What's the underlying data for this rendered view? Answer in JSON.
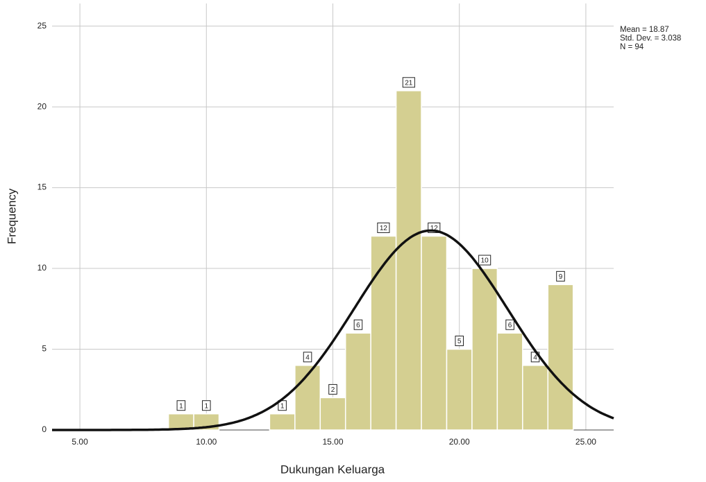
{
  "chart_data": {
    "type": "histogram",
    "x_label": "Dukungan Keluarga",
    "y_label": "Frequency",
    "bins": [
      8.5,
      9.5,
      10.5,
      11.5,
      12.5,
      13.5,
      14.5,
      15.5,
      16.5,
      17.5,
      18.5,
      19.5,
      20.5,
      21.5,
      22.5,
      23.5,
      24.5
    ],
    "values": [
      1,
      1,
      0,
      0,
      1,
      4,
      2,
      6,
      12,
      21,
      12,
      5,
      10,
      6,
      4,
      9
    ],
    "color": "#d4cf91",
    "xlim": [
      3.9,
      26.1
    ],
    "xticks": [
      {
        "value": 5,
        "label": "5.00"
      },
      {
        "value": 10,
        "label": "10.00"
      },
      {
        "value": 15,
        "label": "15.00"
      },
      {
        "value": 20,
        "label": "20.00"
      },
      {
        "value": 25,
        "label": "25.00"
      }
    ],
    "ylim": [
      0,
      26.4
    ],
    "yticks": [
      0,
      5,
      10,
      15,
      20,
      25
    ],
    "grid": true,
    "stats": [
      {
        "value": 18.87,
        "label": "Mean = 18.87"
      },
      {
        "value": 3.038,
        "label": "Std. Dev. = 3.038"
      },
      {
        "value": 94,
        "label": "N = 94"
      }
    ]
  }
}
